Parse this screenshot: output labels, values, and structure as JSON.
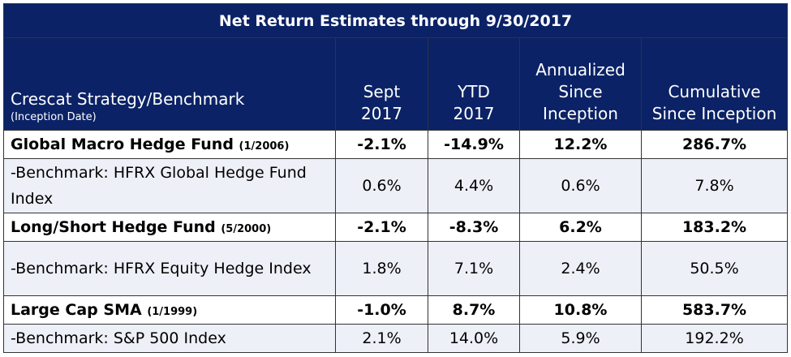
{
  "title": "Net Return Estimates through 9/30/2017",
  "headers": {
    "strategy": "Crescat Strategy/Benchmark",
    "strategy_sub": "(Inception Date)",
    "sept": "Sept 2017",
    "ytd": "YTD 2017",
    "annualized": "Annualized Since Inception",
    "cumulative": "Cumulative Since Inception"
  },
  "rows": [
    {
      "type": "fund",
      "name": "Global Macro Hedge Fund",
      "date": "(1/2006)",
      "sept": "-2.1%",
      "ytd": "-14.9%",
      "annualized": "12.2%",
      "cumulative": "286.7%"
    },
    {
      "type": "bench",
      "name": "-Benchmark: HFRX Global Hedge Fund Index",
      "sept": "0.6%",
      "ytd": "4.4%",
      "annualized": "0.6%",
      "cumulative": "7.8%"
    },
    {
      "type": "fund",
      "name": "Long/Short Hedge Fund",
      "date": "(5/2000)",
      "sept": "-2.1%",
      "ytd": "-8.3%",
      "annualized": "6.2%",
      "cumulative": "183.2%"
    },
    {
      "type": "bench",
      "name": "-Benchmark: HFRX Equity Hedge Index",
      "sept": "1.8%",
      "ytd": "7.1%",
      "annualized": "2.4%",
      "cumulative": "50.5%"
    },
    {
      "type": "fund",
      "name": "Large Cap SMA",
      "date": "(1/1999)",
      "sept": "-1.0%",
      "ytd": "8.7%",
      "annualized": "10.8%",
      "cumulative": "583.7%"
    },
    {
      "type": "bench",
      "name": "-Benchmark: S&P 500 Index",
      "sept": "2.1%",
      "ytd": "14.0%",
      "annualized": "5.9%",
      "cumulative": "192.2%"
    }
  ],
  "colors": {
    "header_bg": "#0b2266",
    "bench_bg": "#eef0f8"
  }
}
